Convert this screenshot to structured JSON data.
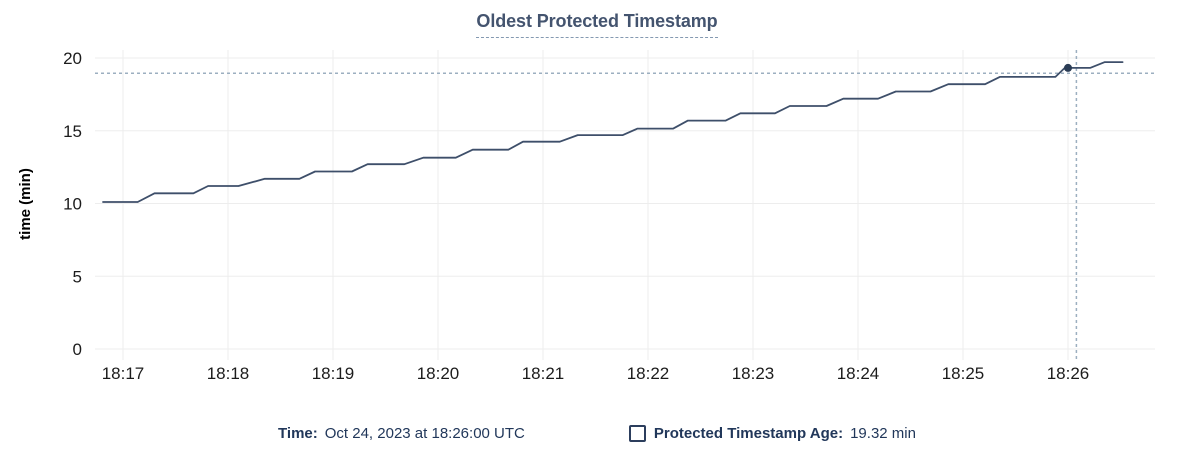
{
  "title": "Oldest Protected Timestamp",
  "colors": {
    "line": "#3e4f6a",
    "dot": "#2b3c55",
    "grid": "#ededed",
    "crosshair": "#9cafc0",
    "tick_text": "#1c1c1c",
    "axis_label_text": "#000000",
    "title_text": "#44546f",
    "title_underline": "#8499b1",
    "legend_text": "#21375a",
    "checkbox_border": "#2c3e5d"
  },
  "chart_data": {
    "type": "line",
    "title": "Oldest Protected Timestamp",
    "xlabel": "",
    "ylabel": "time (min)",
    "y_unit": "min",
    "ylim": [
      0,
      20
    ],
    "y_ticks": [
      0,
      5,
      10,
      15,
      20
    ],
    "x_tick_labels": [
      "18:17",
      "18:18",
      "18:19",
      "18:20",
      "18:21",
      "18:22",
      "18:23",
      "18:24",
      "18:25",
      "18:26"
    ],
    "x_note": "points use t = minutes after 18:17",
    "grid": true,
    "legend_position": "bottom",
    "series": [
      {
        "name": "Protected Timestamp Age",
        "points": [
          [
            -0.19,
            10.1
          ],
          [
            0.14,
            10.1
          ],
          [
            0.3,
            10.7
          ],
          [
            0.67,
            10.7
          ],
          [
            0.81,
            11.2
          ],
          [
            1.1,
            11.2
          ],
          [
            1.35,
            11.7
          ],
          [
            1.68,
            11.7
          ],
          [
            1.83,
            12.2
          ],
          [
            2.18,
            12.2
          ],
          [
            2.33,
            12.7
          ],
          [
            2.68,
            12.7
          ],
          [
            2.86,
            13.15
          ],
          [
            3.17,
            13.15
          ],
          [
            3.33,
            13.7
          ],
          [
            3.67,
            13.7
          ],
          [
            3.81,
            14.25
          ],
          [
            4.16,
            14.25
          ],
          [
            4.33,
            14.7
          ],
          [
            4.76,
            14.7
          ],
          [
            4.9,
            15.15
          ],
          [
            5.24,
            15.15
          ],
          [
            5.38,
            15.7
          ],
          [
            5.74,
            15.7
          ],
          [
            5.88,
            16.2
          ],
          [
            6.21,
            16.2
          ],
          [
            6.35,
            16.7
          ],
          [
            6.7,
            16.7
          ],
          [
            6.86,
            17.2
          ],
          [
            7.19,
            17.2
          ],
          [
            7.36,
            17.7
          ],
          [
            7.69,
            17.7
          ],
          [
            7.86,
            18.2
          ],
          [
            8.21,
            18.2
          ],
          [
            8.35,
            18.7
          ],
          [
            8.88,
            18.7
          ],
          [
            8.97,
            19.32
          ],
          [
            9.21,
            19.32
          ],
          [
            9.35,
            19.72
          ],
          [
            9.52,
            19.72
          ]
        ]
      }
    ],
    "hover": {
      "point_t": 9.0,
      "point_time": "18:26:00",
      "point_value": 19.32,
      "crosshair_t": 9.08,
      "crosshair_value": 18.95
    }
  },
  "legend": {
    "time_label": "Time:",
    "time_value": "Oct 24, 2023 at 18:26:00 UTC",
    "series_label": "Protected Timestamp Age:",
    "series_value": "19.32 min"
  }
}
